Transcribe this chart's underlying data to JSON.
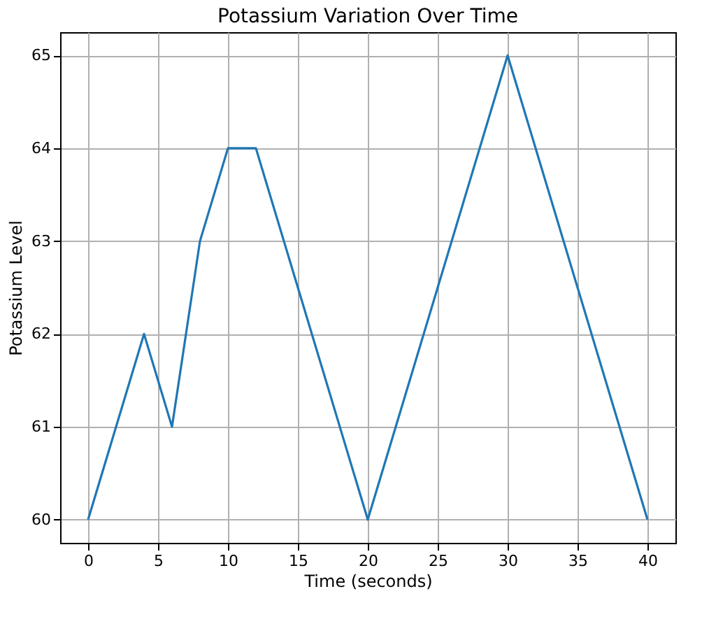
{
  "chart_data": {
    "type": "line",
    "title": "Potassium Variation Over Time",
    "xlabel": "Time (seconds)",
    "ylabel": "Potassium Level",
    "x": [
      0,
      4,
      6,
      8,
      10,
      12,
      20,
      30,
      40
    ],
    "series": [
      {
        "color": "#1f77b4",
        "values": [
          60,
          62,
          61,
          63,
          64,
          64,
          60,
          65,
          60
        ]
      }
    ],
    "xlim": [
      -2,
      42
    ],
    "xticks": [
      0,
      5,
      10,
      15,
      20,
      25,
      30,
      35,
      40
    ],
    "ylim": [
      59.75,
      65.25
    ],
    "yticks": [
      60,
      61,
      62,
      63,
      64,
      65
    ],
    "grid": true,
    "marker": "none",
    "line_style": "solid"
  }
}
